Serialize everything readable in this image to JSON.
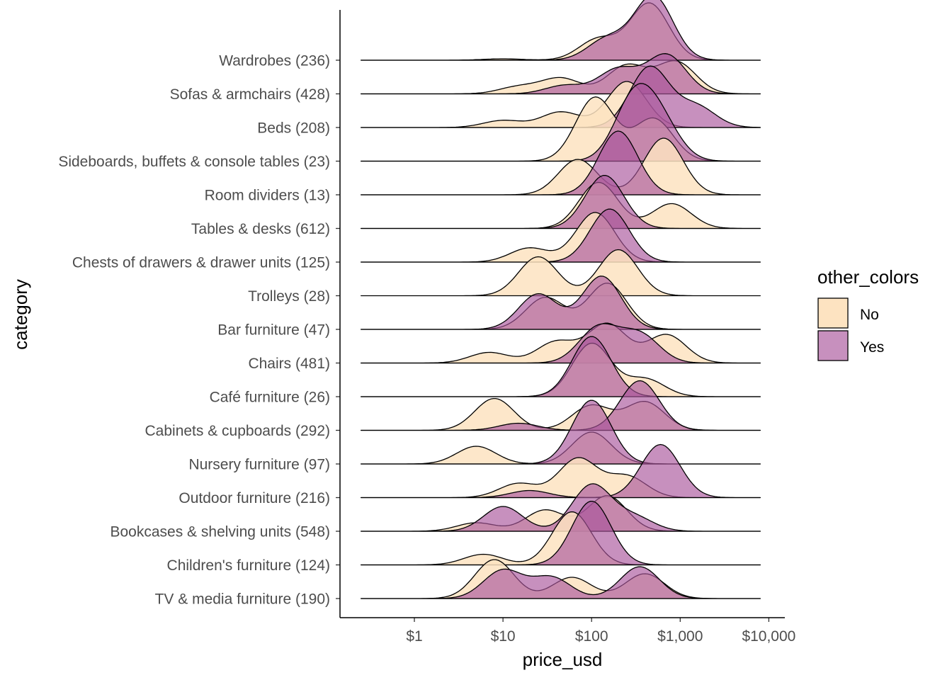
{
  "chart_data": {
    "type": "ridgeline",
    "xlabel": "price_usd",
    "ylabel": "category",
    "x_scale": "log10",
    "xlim": [
      0.25,
      8000
    ],
    "x_ticks": [
      {
        "value": 1,
        "label": "$1"
      },
      {
        "value": 10,
        "label": "$10"
      },
      {
        "value": 100,
        "label": "$100"
      },
      {
        "value": 1000,
        "label": "$1,000"
      },
      {
        "value": 10000,
        "label": "$10,000"
      }
    ],
    "legend": {
      "title": "other_colors",
      "placement": "right",
      "entries": [
        {
          "label": "No",
          "color": "#FDE3C1"
        },
        {
          "label": "Yes",
          "color": "#A9559B"
        }
      ]
    },
    "categories": [
      "Wardrobes (236)",
      "Sofas & armchairs (428)",
      "Beds (208)",
      "Sideboards, buffets & console tables (23)",
      "Room dividers (13)",
      "Tables & desks (612)",
      "Chests of drawers & drawer units (125)",
      "Trolleys (28)",
      "Bar furniture (47)",
      "Chairs (481)",
      "Café furniture (26)",
      "Cabinets & cupboards (292)",
      "Nursery furniture (97)",
      "Outdoor furniture (216)",
      "Bookcases & shelving units (548)",
      "Children's furniture (124)",
      "TV & media furniture (190)"
    ],
    "series": [
      {
        "name": "No",
        "densities": [
          {
            "category": "Wardrobes (236)",
            "x_range": [
              0.25,
              8000
            ],
            "modes": [
              {
                "price": 10,
                "height": 0.02
              },
              {
                "price": 120,
                "height": 0.3
              },
              {
                "price": 450,
                "height": 0.8
              }
            ]
          },
          {
            "category": "Sofas & armchairs (428)",
            "x_range": [
              0.25,
              8000
            ],
            "modes": [
              {
                "price": 15,
                "height": 0.1
              },
              {
                "price": 45,
                "height": 0.22
              },
              {
                "price": 250,
                "height": 0.4
              },
              {
                "price": 900,
                "height": 0.45
              }
            ]
          },
          {
            "category": "Beds (208)",
            "x_range": [
              0.25,
              8000
            ],
            "modes": [
              {
                "price": 10,
                "height": 0.1
              },
              {
                "price": 45,
                "height": 0.22
              },
              {
                "price": 250,
                "height": 0.65
              }
            ]
          },
          {
            "category": "Sideboards, buffets & console tables (23)",
            "x_range": [
              0.25,
              8000
            ],
            "modes": [
              {
                "price": 110,
                "height": 0.9
              },
              {
                "price": 500,
                "height": 0.6
              }
            ]
          },
          {
            "category": "Room dividers (13)",
            "x_range": [
              0.25,
              8000
            ],
            "modes": [
              {
                "price": 70,
                "height": 0.5
              },
              {
                "price": 650,
                "height": 0.8
              }
            ]
          },
          {
            "category": "Tables & desks (612)",
            "x_range": [
              0.25,
              8000
            ],
            "modes": [
              {
                "price": 120,
                "height": 0.65
              },
              {
                "price": 800,
                "height": 0.35
              }
            ]
          },
          {
            "category": "Chests of drawers & drawer units (125)",
            "x_range": [
              0.25,
              8000
            ],
            "modes": [
              {
                "price": 20,
                "height": 0.2
              },
              {
                "price": 110,
                "height": 0.7
              }
            ]
          },
          {
            "category": "Trolleys (28)",
            "x_range": [
              0.25,
              8000
            ],
            "modes": [
              {
                "price": 25,
                "height": 0.55
              },
              {
                "price": 200,
                "height": 0.65
              }
            ]
          },
          {
            "category": "Bar furniture (47)",
            "x_range": [
              0.25,
              8000
            ],
            "modes": [
              {
                "price": 30,
                "height": 0.45
              },
              {
                "price": 150,
                "height": 0.65
              }
            ]
          },
          {
            "category": "Chairs (481)",
            "x_range": [
              0.25,
              8000
            ],
            "modes": [
              {
                "price": 7,
                "height": 0.15
              },
              {
                "price": 40,
                "height": 0.3
              },
              {
                "price": 150,
                "height": 0.55
              },
              {
                "price": 700,
                "height": 0.4
              }
            ]
          },
          {
            "category": "Café furniture (26)",
            "x_range": [
              0.25,
              8000
            ],
            "modes": [
              {
                "price": 100,
                "height": 0.75
              },
              {
                "price": 400,
                "height": 0.25
              }
            ]
          },
          {
            "category": "Cabinets & cupboards (292)",
            "x_range": [
              0.25,
              8000
            ],
            "modes": [
              {
                "price": 8,
                "height": 0.45
              },
              {
                "price": 100,
                "height": 0.35
              },
              {
                "price": 400,
                "height": 0.4
              }
            ]
          },
          {
            "category": "Nursery furniture (97)",
            "x_range": [
              0.25,
              8000
            ],
            "modes": [
              {
                "price": 5,
                "height": 0.25
              },
              {
                "price": 100,
                "height": 0.45
              }
            ]
          },
          {
            "category": "Outdoor furniture (216)",
            "x_range": [
              0.25,
              8000
            ],
            "modes": [
              {
                "price": 15,
                "height": 0.2
              },
              {
                "price": 70,
                "height": 0.55
              },
              {
                "price": 250,
                "height": 0.3
              }
            ]
          },
          {
            "category": "Bookcases & shelving units (548)",
            "x_range": [
              0.25,
              8000
            ],
            "modes": [
              {
                "price": 5,
                "height": 0.12
              },
              {
                "price": 30,
                "height": 0.3
              },
              {
                "price": 150,
                "height": 0.5
              }
            ]
          },
          {
            "category": "Children's furniture (124)",
            "x_range": [
              0.25,
              8000
            ],
            "modes": [
              {
                "price": 6,
                "height": 0.15
              },
              {
                "price": 60,
                "height": 0.75
              }
            ]
          },
          {
            "category": "TV & media furniture (190)",
            "x_range": [
              0.25,
              8000
            ],
            "modes": [
              {
                "price": 8,
                "height": 0.55
              },
              {
                "price": 60,
                "height": 0.3
              },
              {
                "price": 400,
                "height": 0.35
              }
            ]
          }
        ]
      },
      {
        "name": "Yes",
        "densities": [
          {
            "category": "Wardrobes (236)",
            "x_range": [
              0.25,
              8000
            ],
            "modes": [
              {
                "price": 150,
                "height": 0.3
              },
              {
                "price": 500,
                "height": 0.9
              }
            ]
          },
          {
            "category": "Sofas & armchairs (428)",
            "x_range": [
              0.25,
              8000
            ],
            "modes": [
              {
                "price": 50,
                "height": 0.12
              },
              {
                "price": 200,
                "height": 0.35
              },
              {
                "price": 700,
                "height": 0.55
              }
            ]
          },
          {
            "category": "Beds (208)",
            "x_range": [
              0.25,
              8000
            ],
            "modes": [
              {
                "price": 450,
                "height": 0.85
              },
              {
                "price": 1500,
                "height": 0.3
              }
            ]
          },
          {
            "category": "Sideboards, buffets & console tables (23)",
            "x_range": [
              0.25,
              8000
            ],
            "modes": [
              {
                "price": 300,
                "height": 0.85
              },
              {
                "price": 600,
                "height": 0.5
              }
            ]
          },
          {
            "category": "Room dividers (13)",
            "x_range": [
              0.25,
              8000
            ],
            "modes": [
              {
                "price": 200,
                "height": 0.9
              }
            ]
          },
          {
            "category": "Tables & desks (612)",
            "x_range": [
              0.25,
              8000
            ],
            "modes": [
              {
                "price": 140,
                "height": 0.75
              }
            ]
          },
          {
            "category": "Chests of drawers & drawer units (125)",
            "x_range": [
              0.25,
              8000
            ],
            "modes": [
              {
                "price": 160,
                "height": 0.75
              }
            ]
          },
          {
            "category": "Trolleys (28)",
            "x_range": [
              0.25,
              8000
            ],
            "modes": []
          },
          {
            "category": "Bar furniture (47)",
            "x_range": [
              0.25,
              8000
            ],
            "modes": [
              {
                "price": 25,
                "height": 0.5
              },
              {
                "price": 130,
                "height": 0.75
              }
            ]
          },
          {
            "category": "Chairs (481)",
            "x_range": [
              0.25,
              8000
            ],
            "modes": [
              {
                "price": 120,
                "height": 0.5
              },
              {
                "price": 350,
                "height": 0.4
              }
            ]
          },
          {
            "category": "Café furniture (26)",
            "x_range": [
              0.25,
              8000
            ],
            "modes": [
              {
                "price": 100,
                "height": 0.85
              }
            ]
          },
          {
            "category": "Cabinets & cupboards (292)",
            "x_range": [
              0.25,
              8000
            ],
            "modes": [
              {
                "price": 15,
                "height": 0.1
              },
              {
                "price": 350,
                "height": 0.7
              }
            ]
          },
          {
            "category": "Nursery furniture (97)",
            "x_range": [
              0.25,
              8000
            ],
            "modes": [
              {
                "price": 100,
                "height": 0.9
              }
            ]
          },
          {
            "category": "Outdoor furniture (216)",
            "x_range": [
              0.25,
              8000
            ],
            "modes": [
              {
                "price": 20,
                "height": 0.1
              },
              {
                "price": 600,
                "height": 0.75
              }
            ]
          },
          {
            "category": "Bookcases & shelving units (548)",
            "x_range": [
              0.25,
              8000
            ],
            "modes": [
              {
                "price": 10,
                "height": 0.35
              },
              {
                "price": 100,
                "height": 0.65
              },
              {
                "price": 300,
                "height": 0.2
              }
            ]
          },
          {
            "category": "Children's furniture (124)",
            "x_range": [
              0.25,
              8000
            ],
            "modes": [
              {
                "price": 100,
                "height": 0.9
              }
            ]
          },
          {
            "category": "TV & media furniture (190)",
            "x_range": [
              0.25,
              8000
            ],
            "modes": [
              {
                "price": 10,
                "height": 0.4
              },
              {
                "price": 35,
                "height": 0.3
              },
              {
                "price": 350,
                "height": 0.45
              }
            ]
          }
        ]
      }
    ]
  }
}
